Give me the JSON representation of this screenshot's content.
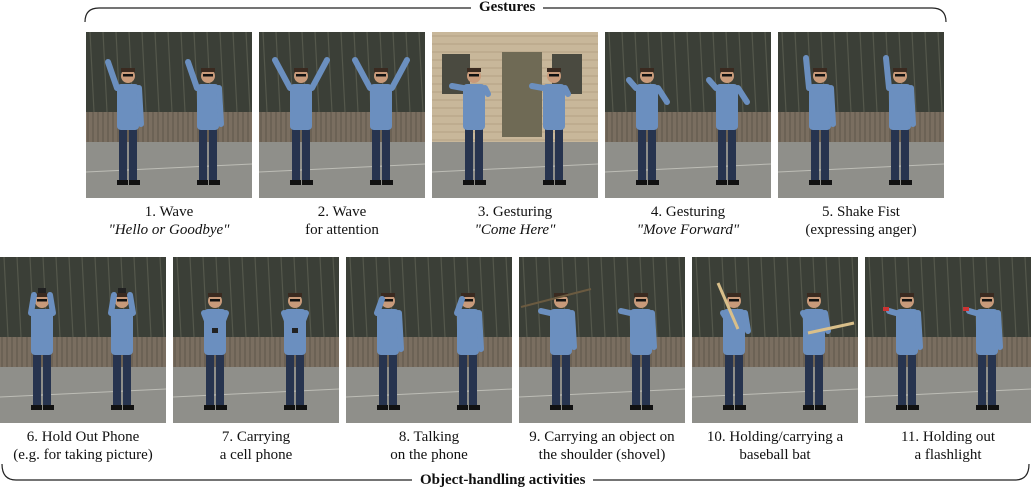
{
  "top_group": {
    "label": "Gestures"
  },
  "bottom_group": {
    "label": "Object-handling activities"
  },
  "gestures": [
    {
      "line1": "1. Wave",
      "line2": "\"Hello or Goodbye\"",
      "italic": true,
      "scene": "parking",
      "pose": "wave"
    },
    {
      "line1": "2. Wave",
      "line2": "for attention",
      "italic": false,
      "scene": "parking",
      "pose": "arms-up"
    },
    {
      "line1": "3. Gesturing",
      "line2": "\"Come Here\"",
      "italic": true,
      "scene": "building",
      "pose": "come-here"
    },
    {
      "line1": "4. Gesturing",
      "line2": "\"Move Forward\"",
      "italic": true,
      "scene": "parking",
      "pose": "forward"
    },
    {
      "line1": "5. Shake Fist",
      "line2": "(expressing anger)",
      "italic": false,
      "scene": "parking",
      "pose": "fist"
    }
  ],
  "objects": [
    {
      "line1": "6. Hold Out Phone",
      "line2": "(e.g. for taking picture)",
      "pose": "phone-out"
    },
    {
      "line1": "7. Carrying",
      "line2": "a cell phone",
      "pose": "carry-phone"
    },
    {
      "line1": "8. Talking",
      "line2": "on the phone",
      "pose": "talk-phone"
    },
    {
      "line1": "9. Carrying an object on",
      "line2": "the shoulder (shovel)",
      "pose": "shovel"
    },
    {
      "line1": "10. Holding/carrying a",
      "line2": "baseball bat",
      "pose": "bat"
    },
    {
      "line1": "11. Holding out",
      "line2": "a flashlight",
      "pose": "flashlight"
    }
  ],
  "colors": {
    "hoodie": "#6b8fbf",
    "jeans": "#27344f",
    "skin": "#c89a7a",
    "ground": "#8f8f8a",
    "trees": "#3b3f37",
    "fence": "#7a6e60",
    "wall": "#c8b79a"
  }
}
